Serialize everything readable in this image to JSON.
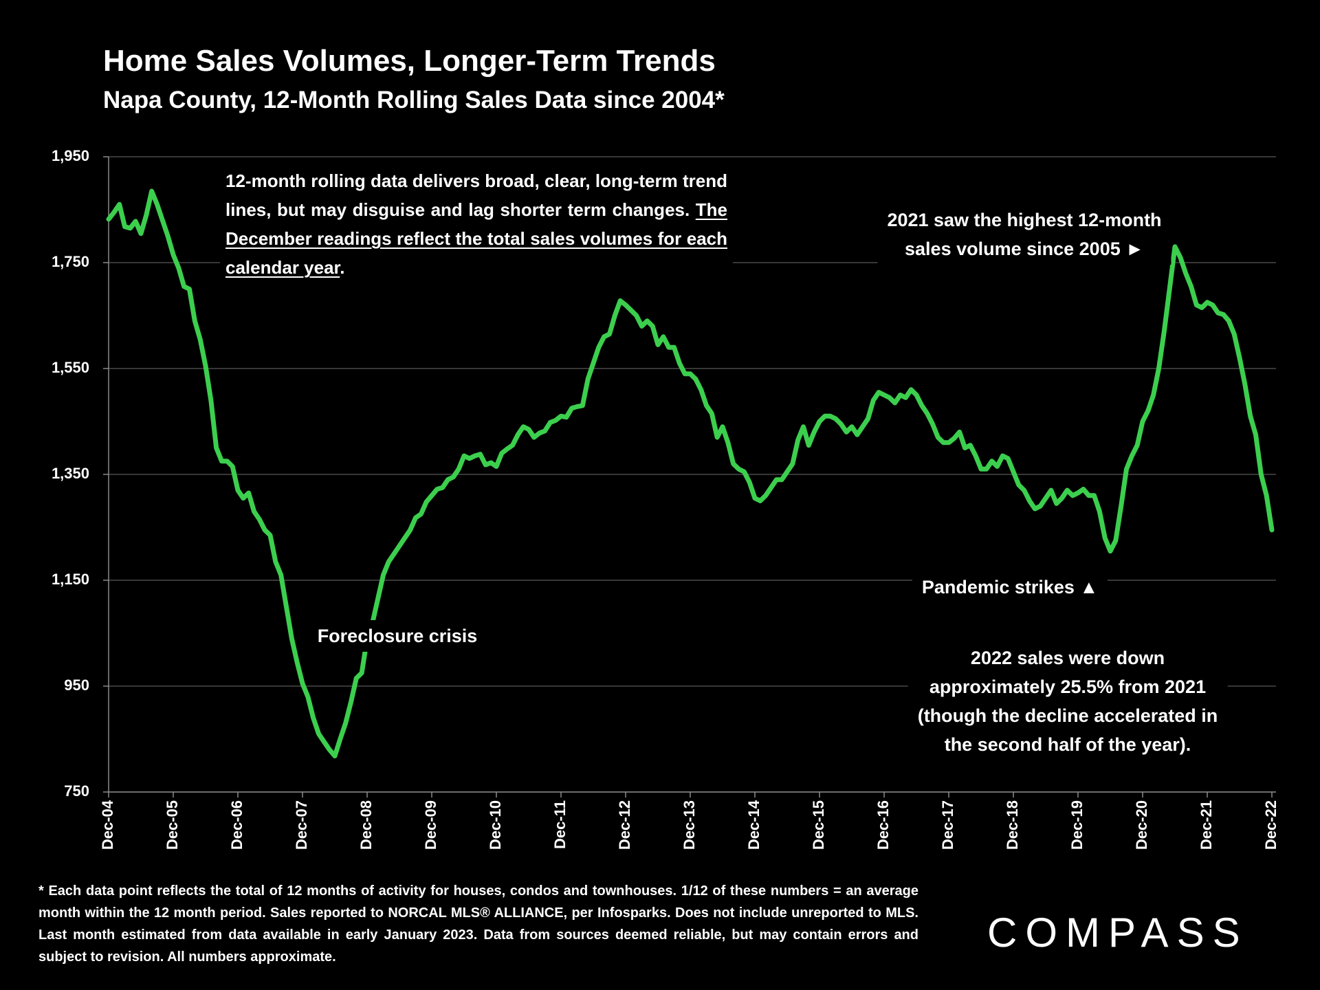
{
  "chart_data": {
    "type": "line",
    "title": "Home Sales Volumes, Longer-Term Trends",
    "subtitle": "Napa County, 12-Month Rolling Sales Data since 2004*",
    "color": "#3ccf4e",
    "grid": true,
    "ylim": [
      750,
      1950
    ],
    "yticks": [
      750,
      950,
      {
        "value": 1150,
        "label": "1,150"
      },
      {
        "value": 1350,
        "label": "1,350"
      },
      {
        "value": 1550,
        "label": "1,550"
      },
      {
        "value": 1750,
        "label": "1,750"
      },
      {
        "value": 1950,
        "label": "1,950"
      }
    ],
    "categories": [
      "Dec-04",
      null,
      null,
      null,
      null,
      null,
      null,
      null,
      null,
      null,
      null,
      null,
      "Dec-05",
      null,
      null,
      null,
      null,
      null,
      null,
      null,
      null,
      null,
      null,
      null,
      "Dec-06",
      null,
      null,
      null,
      null,
      null,
      null,
      null,
      null,
      null,
      null,
      null,
      "Dec-07",
      null,
      null,
      null,
      null,
      null,
      null,
      null,
      null,
      null,
      null,
      null,
      "Dec-08",
      null,
      null,
      null,
      null,
      null,
      null,
      null,
      null,
      null,
      null,
      null,
      "Dec-09",
      null,
      null,
      null,
      null,
      null,
      null,
      null,
      null,
      null,
      null,
      null,
      "Dec-10",
      null,
      null,
      null,
      null,
      null,
      null,
      null,
      null,
      null,
      null,
      null,
      "Dec-11",
      null,
      null,
      null,
      null,
      null,
      null,
      null,
      null,
      null,
      null,
      null,
      "Dec-12",
      null,
      null,
      null,
      null,
      null,
      null,
      null,
      null,
      null,
      null,
      null,
      "Dec-13",
      null,
      null,
      null,
      null,
      null,
      null,
      null,
      null,
      null,
      null,
      null,
      "Dec-14",
      null,
      null,
      null,
      null,
      null,
      null,
      null,
      null,
      null,
      null,
      null,
      "Dec-15",
      null,
      null,
      null,
      null,
      null,
      null,
      null,
      null,
      null,
      null,
      null,
      "Dec-16",
      null,
      null,
      null,
      null,
      null,
      null,
      null,
      null,
      null,
      null,
      null,
      "Dec-17",
      null,
      null,
      null,
      null,
      null,
      null,
      null,
      null,
      null,
      null,
      null,
      "Dec-18",
      null,
      null,
      null,
      null,
      null,
      null,
      null,
      null,
      null,
      null,
      null,
      "Dec-19",
      null,
      null,
      null,
      null,
      null,
      null,
      null,
      null,
      null,
      null,
      null,
      "Dec-20",
      null,
      null,
      null,
      null,
      null,
      null,
      null,
      null,
      null,
      null,
      null,
      "Dec-21",
      null,
      null,
      null,
      null,
      null,
      null,
      null,
      null,
      null,
      null,
      null,
      "Dec-22"
    ],
    "values": [
      1832,
      1845,
      1860,
      1818,
      1815,
      1828,
      1805,
      1840,
      1885,
      1860,
      1830,
      1800,
      1765,
      1740,
      1705,
      1700,
      1640,
      1605,
      1555,
      1490,
      1400,
      1375,
      1375,
      1365,
      1320,
      1305,
      1315,
      1280,
      1265,
      1245,
      1235,
      1185,
      1160,
      1100,
      1040,
      995,
      955,
      930,
      890,
      860,
      845,
      830,
      818,
      850,
      880,
      920,
      965,
      975,
      1040,
      1070,
      1115,
      1160,
      1185,
      1200,
      1215,
      1230,
      1245,
      1268,
      1275,
      1298,
      1310,
      1322,
      1325,
      1340,
      1345,
      1360,
      1385,
      1380,
      1385,
      1388,
      1368,
      1372,
      1365,
      1390,
      1398,
      1405,
      1425,
      1440,
      1435,
      1420,
      1428,
      1432,
      1448,
      1452,
      1460,
      1458,
      1475,
      1478,
      1480,
      1530,
      1560,
      1590,
      1610,
      1615,
      1650,
      1678,
      1670,
      1660,
      1650,
      1630,
      1640,
      1630,
      1595,
      1610,
      1590,
      1590,
      1560,
      1540,
      1540,
      1530,
      1510,
      1480,
      1465,
      1420,
      1440,
      1410,
      1370,
      1360,
      1355,
      1335,
      1305,
      1300,
      1310,
      1325,
      1340,
      1340,
      1355,
      1370,
      1415,
      1440,
      1405,
      1430,
      1450,
      1460,
      1460,
      1455,
      1445,
      1430,
      1440,
      1425,
      1440,
      1455,
      1490,
      1505,
      1500,
      1495,
      1485,
      1500,
      1495,
      1510,
      1500,
      1480,
      1465,
      1445,
      1420,
      1410,
      1410,
      1418,
      1430,
      1400,
      1405,
      1385,
      1360,
      1360,
      1375,
      1365,
      1385,
      1380,
      1355,
      1330,
      1320,
      1300,
      1285,
      1290,
      1305,
      1320,
      1295,
      1305,
      1320,
      1310,
      1315,
      1322,
      1310,
      1310,
      1280,
      1230,
      1205,
      1225,
      1290,
      1360,
      1385,
      1405,
      1450,
      1470,
      1500,
      1550,
      1620,
      1700,
      1780,
      1760,
      1730,
      1705,
      1670,
      1665,
      1675,
      1670,
      1655,
      1652,
      1640,
      1615,
      1570,
      1520,
      1460,
      1425,
      1350,
      1310,
      1245
    ],
    "note": {
      "text": "12-month rolling data delivers broad, clear, long-term trend lines, but may disguise and lag shorter term changes. ",
      "underlined": "The December readings reflect the total sales volumes for each calendar year",
      "end": "."
    },
    "annotations": [
      {
        "lines": [
          "Foreclosure crisis"
        ]
      },
      {
        "lines": [
          "2021 saw the highest 12-month",
          "sales volume since 2005 ►"
        ]
      },
      {
        "lines": [
          "Pandemic strikes ▲"
        ]
      },
      {
        "lines": [
          "2022 sales were down",
          "approximately 25.5% from 2021",
          "(though the decline accelerated in",
          "the second half of the year)."
        ]
      }
    ],
    "footnote": "* Each data point reflects the total of 12 months of activity for houses, condos and townhouses. 1/12 of these numbers = an average month within the 12 month period. Sales reported to NORCAL MLS® ALLIANCE, per Infosparks. Does not include unreported to MLS. Last month estimated from data available in early January 2023. Data from sources deemed reliable, but may contain errors and subject to revision. All numbers approximate.",
    "logo": "COMPASS"
  }
}
